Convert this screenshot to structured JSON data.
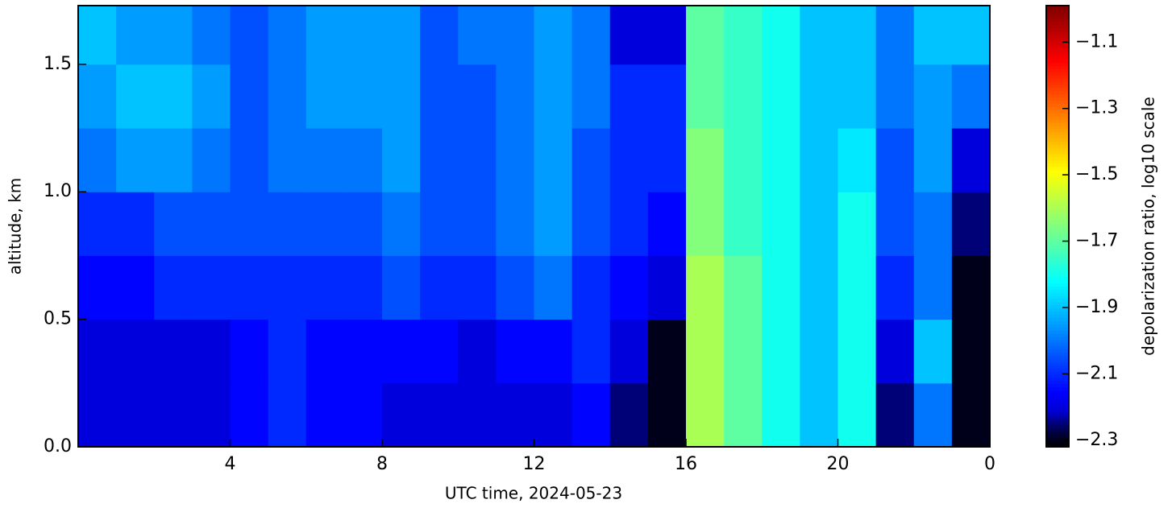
{
  "chart_data": {
    "type": "heatmap",
    "x_label": "UTC time,  2024-05-23",
    "y_label": "altitude, km",
    "colorbar_label": "depolarization ratio, log10 scale",
    "x_edges": [
      0,
      1,
      2,
      3,
      4,
      5,
      6,
      7,
      8,
      9,
      10,
      11,
      12,
      13,
      14,
      15,
      16,
      17,
      18,
      19,
      20,
      21,
      22,
      23,
      24
    ],
    "y_edges": [
      0,
      0.25,
      0.5,
      0.75,
      1.0,
      1.25,
      1.5,
      1.73
    ],
    "z": [
      [
        -2.2,
        -2.2,
        -2.2,
        -2.2,
        -2.15,
        -2.1,
        -2.15,
        -2.15,
        -2.2,
        -2.2,
        -2.2,
        -2.2,
        -2.2,
        -2.15,
        -2.25,
        -2.3,
        -1.6,
        -1.7,
        -1.8,
        -1.9,
        -1.8,
        -2.25,
        -2.0,
        -2.3
      ],
      [
        -2.2,
        -2.2,
        -2.2,
        -2.2,
        -2.15,
        -2.1,
        -2.15,
        -2.15,
        -2.15,
        -2.15,
        -2.2,
        -2.15,
        -2.15,
        -2.1,
        -2.2,
        -2.3,
        -1.6,
        -1.7,
        -1.8,
        -1.9,
        -1.8,
        -2.2,
        -1.9,
        -2.3
      ],
      [
        -2.15,
        -2.15,
        -2.1,
        -2.1,
        -2.1,
        -2.1,
        -2.1,
        -2.1,
        -2.05,
        -2.1,
        -2.1,
        -2.05,
        -2.0,
        -2.1,
        -2.15,
        -2.2,
        -1.6,
        -1.7,
        -1.8,
        -1.9,
        -1.8,
        -2.1,
        -2.0,
        -2.3
      ],
      [
        -2.1,
        -2.1,
        -2.05,
        -2.05,
        -2.05,
        -2.05,
        -2.05,
        -2.05,
        -2.0,
        -2.05,
        -2.05,
        -2.0,
        -1.95,
        -2.05,
        -2.1,
        -2.15,
        -1.65,
        -1.75,
        -1.8,
        -1.9,
        -1.8,
        -2.05,
        -2.0,
        -2.25
      ],
      [
        -2.0,
        -1.95,
        -1.95,
        -2.0,
        -2.05,
        -2.0,
        -2.0,
        -2.0,
        -1.95,
        -2.05,
        -2.05,
        -2.0,
        -1.95,
        -2.05,
        -2.1,
        -2.1,
        -1.65,
        -1.75,
        -1.8,
        -1.9,
        -1.85,
        -2.05,
        -1.95,
        -2.2
      ],
      [
        -1.95,
        -1.9,
        -1.9,
        -1.95,
        -2.05,
        -2.0,
        -1.95,
        -1.95,
        -1.95,
        -2.05,
        -2.05,
        -2.0,
        -1.95,
        -2.0,
        -2.1,
        -2.1,
        -1.7,
        -1.75,
        -1.8,
        -1.9,
        -1.9,
        -2.0,
        -1.95,
        -2.0
      ],
      [
        -1.9,
        -1.95,
        -1.95,
        -2.0,
        -2.05,
        -2.0,
        -1.95,
        -1.95,
        -1.95,
        -2.05,
        -2.0,
        -2.0,
        -1.95,
        -2.0,
        -2.2,
        -2.2,
        -1.7,
        -1.75,
        -1.8,
        -1.9,
        -1.9,
        -2.0,
        -1.9,
        -1.9
      ]
    ],
    "xlim": [
      0,
      24
    ],
    "xticks": [
      4,
      8,
      12,
      16,
      20,
      {
        "value": 24,
        "label": "0"
      }
    ],
    "ylim": [
      0,
      1.73
    ],
    "yticks": [
      {
        "value": 0,
        "label": "0.0"
      },
      0.5,
      {
        "value": 1,
        "label": "1.0"
      },
      1.5
    ],
    "clim": [
      -2.32,
      -0.99
    ],
    "cticks": [
      {
        "value": -1.1,
        "label": "−1.1"
      },
      {
        "value": -1.3,
        "label": "−1.3"
      },
      {
        "value": -1.5,
        "label": "−1.5"
      },
      {
        "value": -1.7,
        "label": "−1.7"
      },
      {
        "value": -1.9,
        "label": "−1.9"
      },
      {
        "value": -2.1,
        "label": "−2.1"
      },
      {
        "value": -2.3,
        "label": "−2.3"
      }
    ],
    "colormap": "jet"
  }
}
